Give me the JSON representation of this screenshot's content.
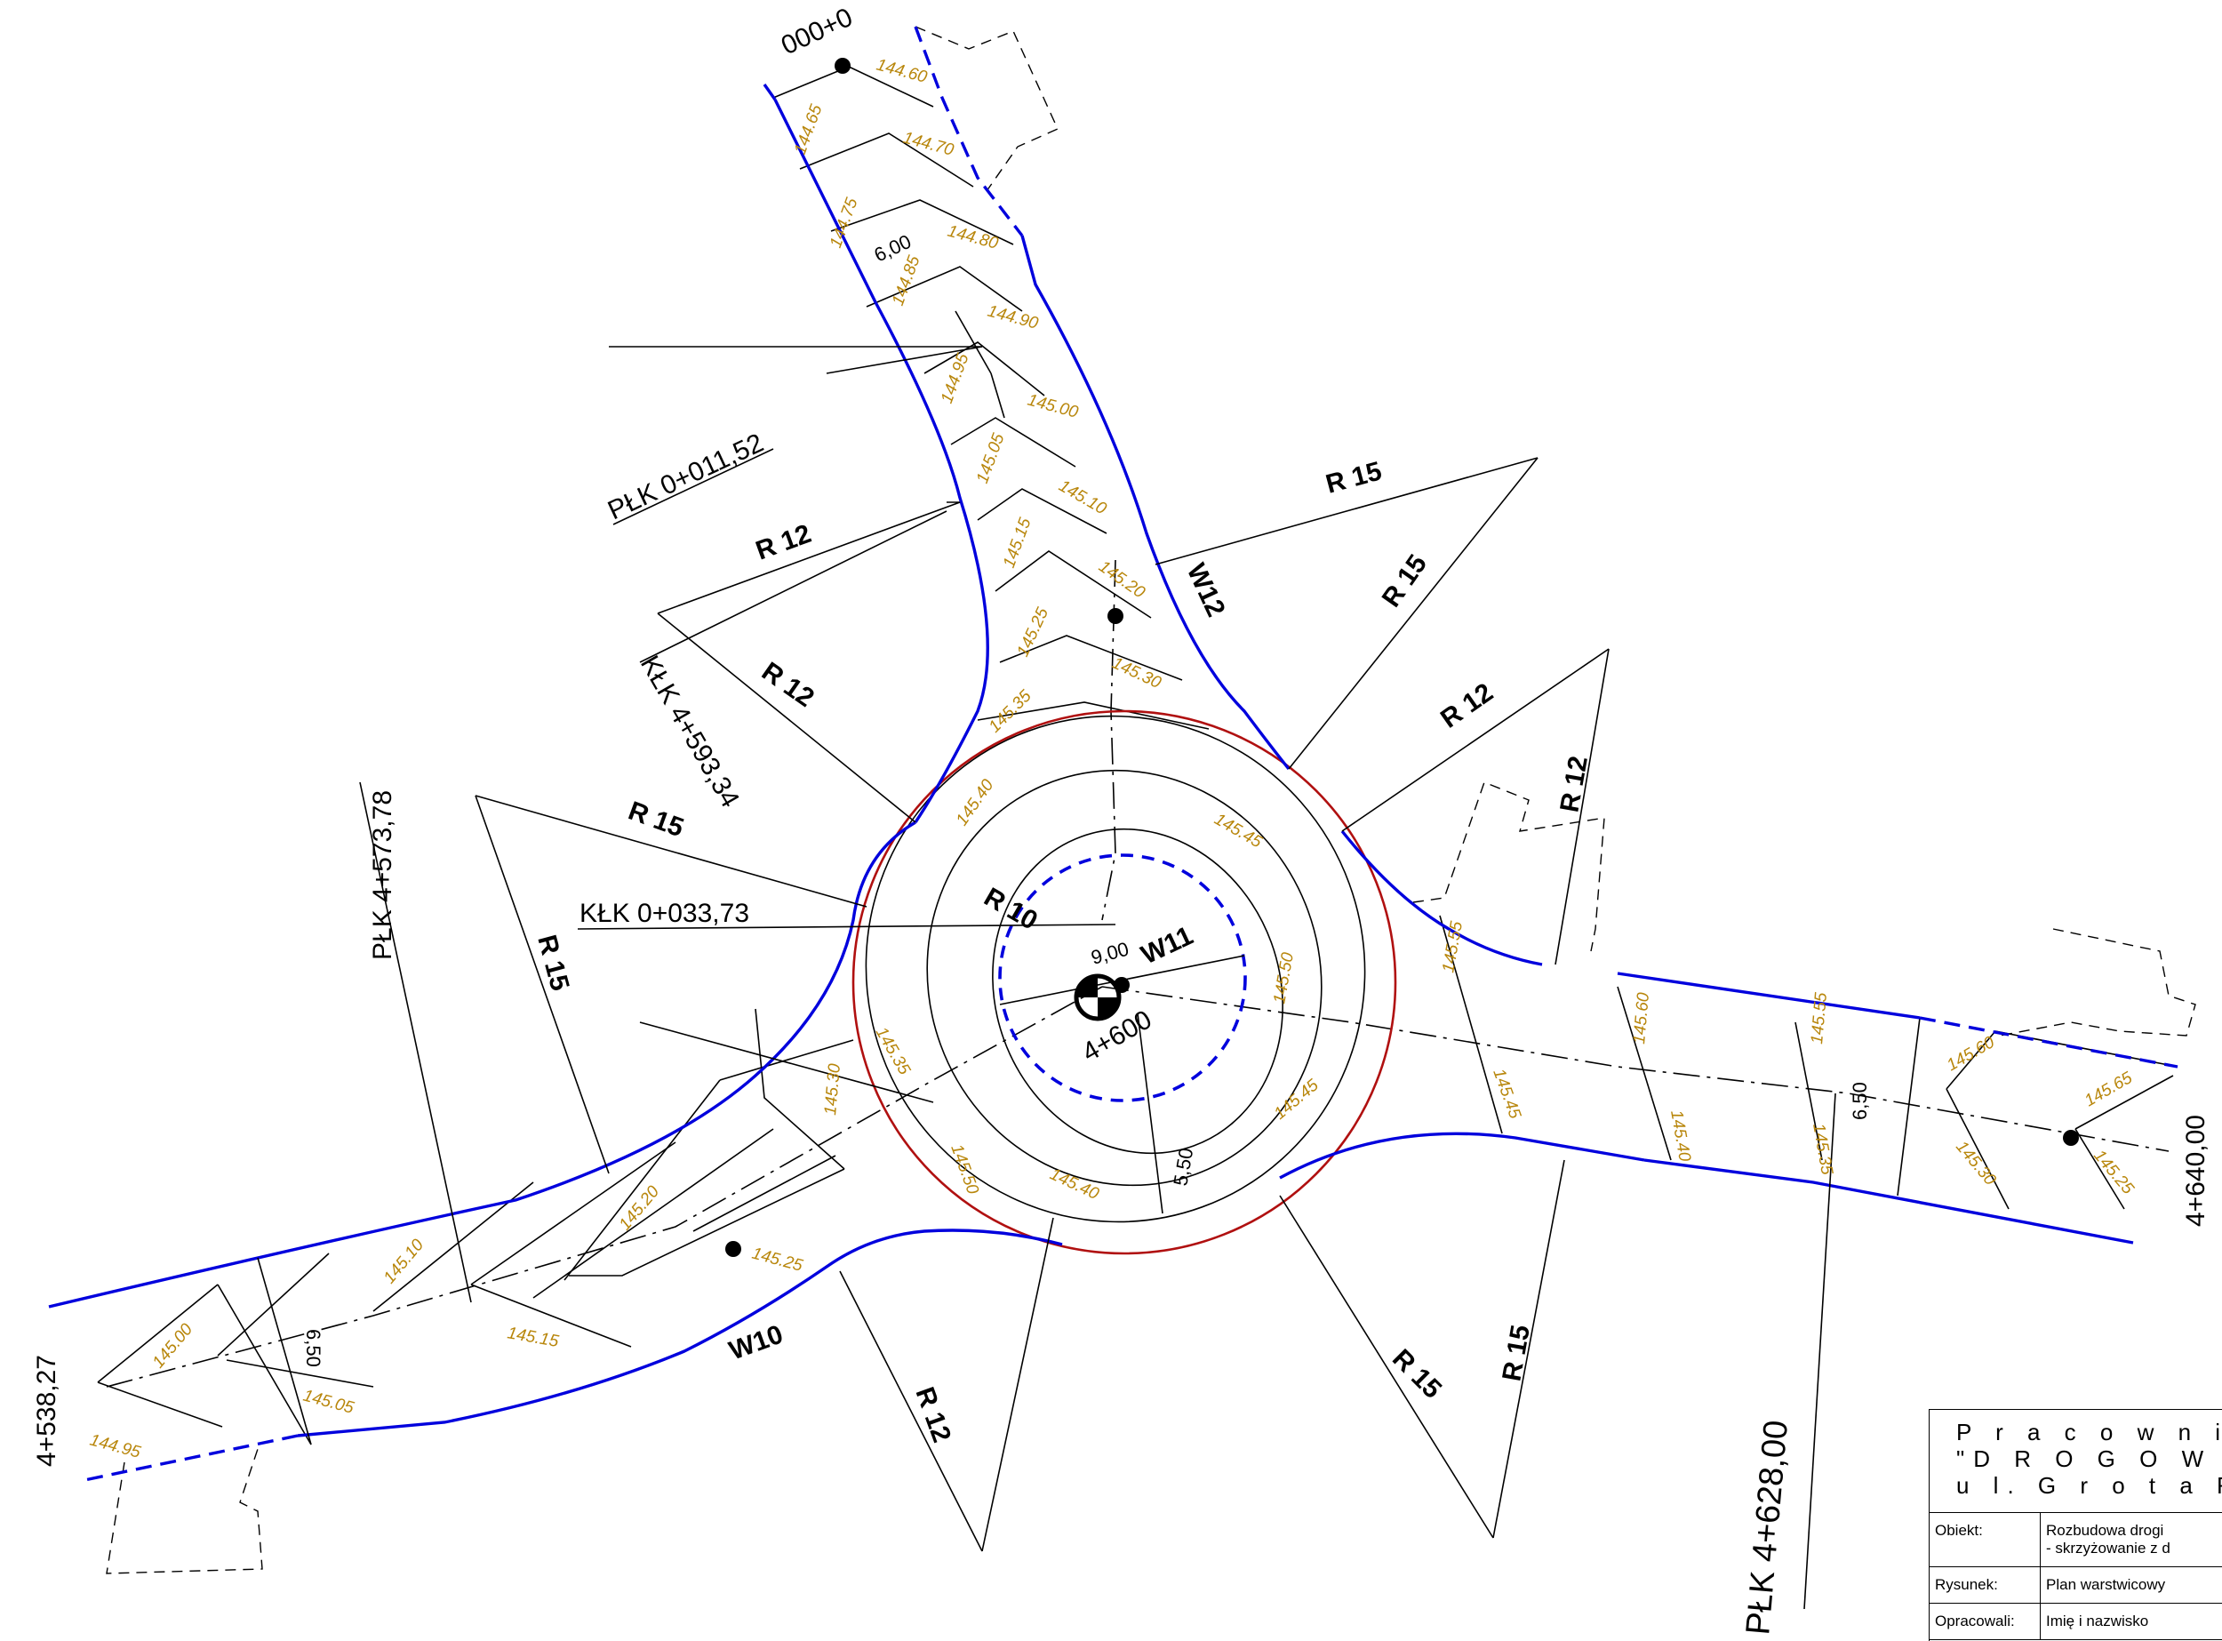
{
  "colors": {
    "edge": "#0000dd",
    "circle": "#b01010",
    "elevation": "#b8860b",
    "line": "#000000"
  },
  "labels": {
    "start_chainage": "000+0",
    "plk_011": "PŁK 0+011,52",
    "klk_4593": "KŁK 4+593,34",
    "plk_4573": "PŁK 4+573,78",
    "klk_033": "KŁK 0+033,73",
    "center_chainage": "4+600",
    "plk_4628": "PŁK 4+628,00",
    "left_end": "4+538,27",
    "right_end": "4+640,00",
    "w10": "W10",
    "w11": "W11",
    "w12": "W12",
    "r10": "R 10",
    "r12": "R 12",
    "r15": "R 15"
  },
  "dimensions": {
    "d600": "6,00",
    "d900": "9,00",
    "d550": "5,50",
    "d650a": "6,50",
    "d650b": "6,50"
  },
  "elevations": [
    "144.60",
    "144.65",
    "144.70",
    "144.75",
    "144.80",
    "144.85",
    "144.90",
    "144.95",
    "145.00",
    "145.05",
    "145.10",
    "145.15",
    "145.20",
    "145.25",
    "145.30",
    "145.35",
    "145.40",
    "145.45",
    "145.50",
    "145.55",
    "145.60",
    "145.65",
    "144.95",
    "145.00",
    "145.05",
    "145.10",
    "145.15",
    "145.20",
    "145.25",
    "145.30",
    "145.35",
    "145.40",
    "145.45",
    "145.50",
    "145.55",
    "145.60",
    "145.45",
    "145.40",
    "145.35",
    "145.30",
    "145.25",
    "145.45",
    "145.50",
    "145.55",
    "145.60",
    "145.65"
  ],
  "title_block": {
    "line1": "P r a c o w n i",
    "line2": "\"D R O G O W N I C",
    "line3": "u l.  G r o t a   R o w e c",
    "object_label": "Obiekt:",
    "object_value_1": "Rozbudowa drogi",
    "object_value_2": "- skrzyżowanie z d",
    "drawing_label": "Rysunek:",
    "drawing_value": "Plan warstwicowy",
    "author_label": "Opracowali:",
    "author_value": "Imię i nazwisko"
  }
}
